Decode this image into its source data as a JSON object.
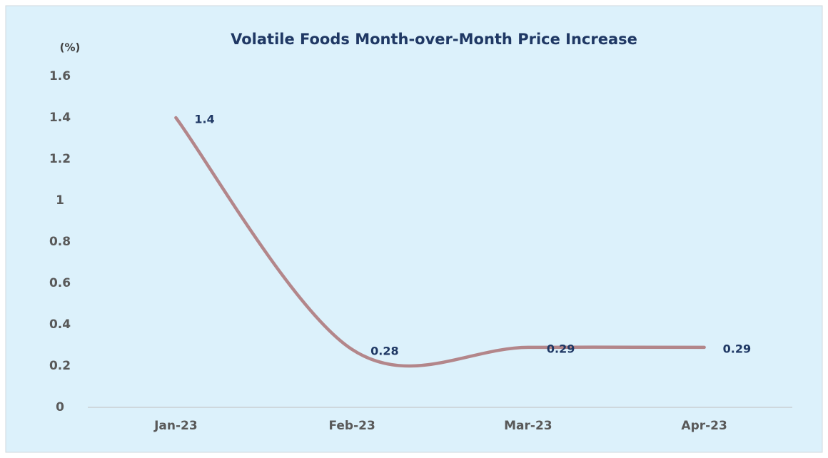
{
  "chart_data": {
    "type": "line",
    "title": "Volatile Foods Month-over-Month Price Increase",
    "y_label": "(%)",
    "categories": [
      "Jan-23",
      "Feb-23",
      "Mar-23",
      "Apr-23"
    ],
    "values": [
      1.4,
      0.28,
      0.29,
      0.29
    ],
    "color": "#b3868a",
    "ylim": [
      0,
      1.6
    ],
    "yticks": [
      0,
      0.2,
      0.4,
      0.6,
      0.8,
      1,
      1.2,
      1.4,
      1.6
    ],
    "smooth": true,
    "grid": false
  }
}
